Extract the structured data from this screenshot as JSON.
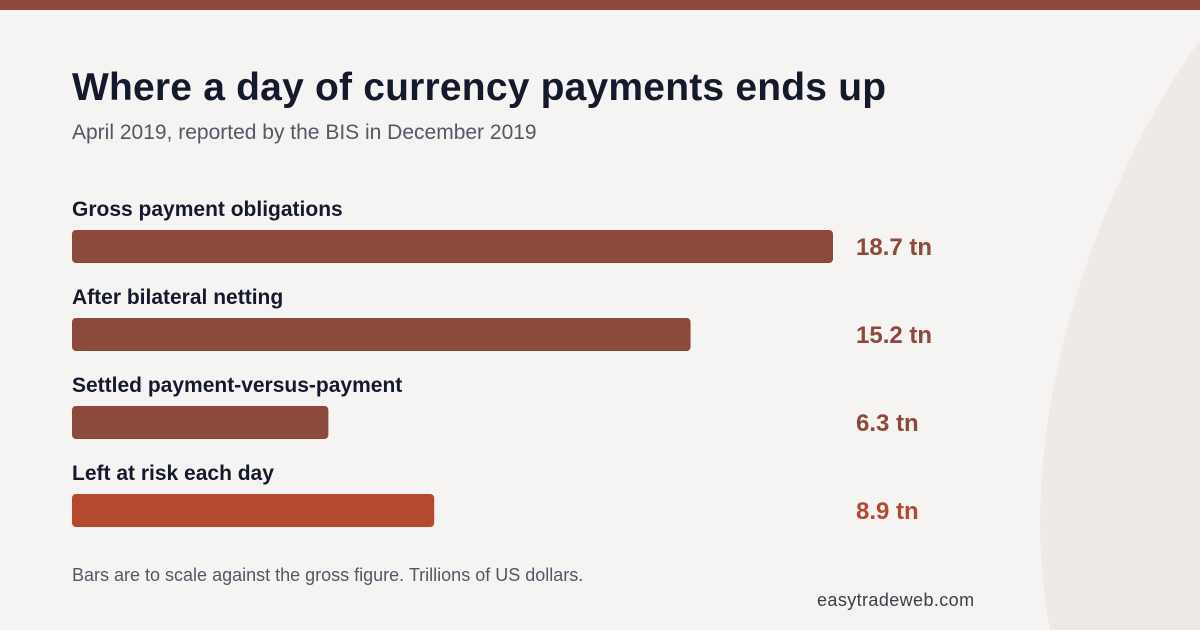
{
  "title": "Where a day of currency payments ends up",
  "subtitle": "April 2019, reported by the BIS in December 2019",
  "footnote": "Bars are to scale against the gross figure. Trillions of US dollars.",
  "source": "easytradeweb.com",
  "colors": {
    "bar": "#8b4a3b",
    "risk_bar": "#b5492d",
    "background": "#f6f3f3"
  },
  "chart_data": {
    "type": "bar",
    "orientation": "horizontal",
    "categories": [
      "Gross payment obligations",
      "After bilateral netting",
      "Settled payment-versus-payment",
      "Left at risk each day"
    ],
    "values": [
      18.7,
      15.2,
      6.3,
      8.9
    ],
    "value_labels": [
      "18.7 tn",
      "15.2 tn",
      "6.3 tn",
      "8.9 tn"
    ],
    "highlight_index": 3,
    "xlim": [
      0,
      18.7
    ],
    "grid": false,
    "legend": "none"
  }
}
